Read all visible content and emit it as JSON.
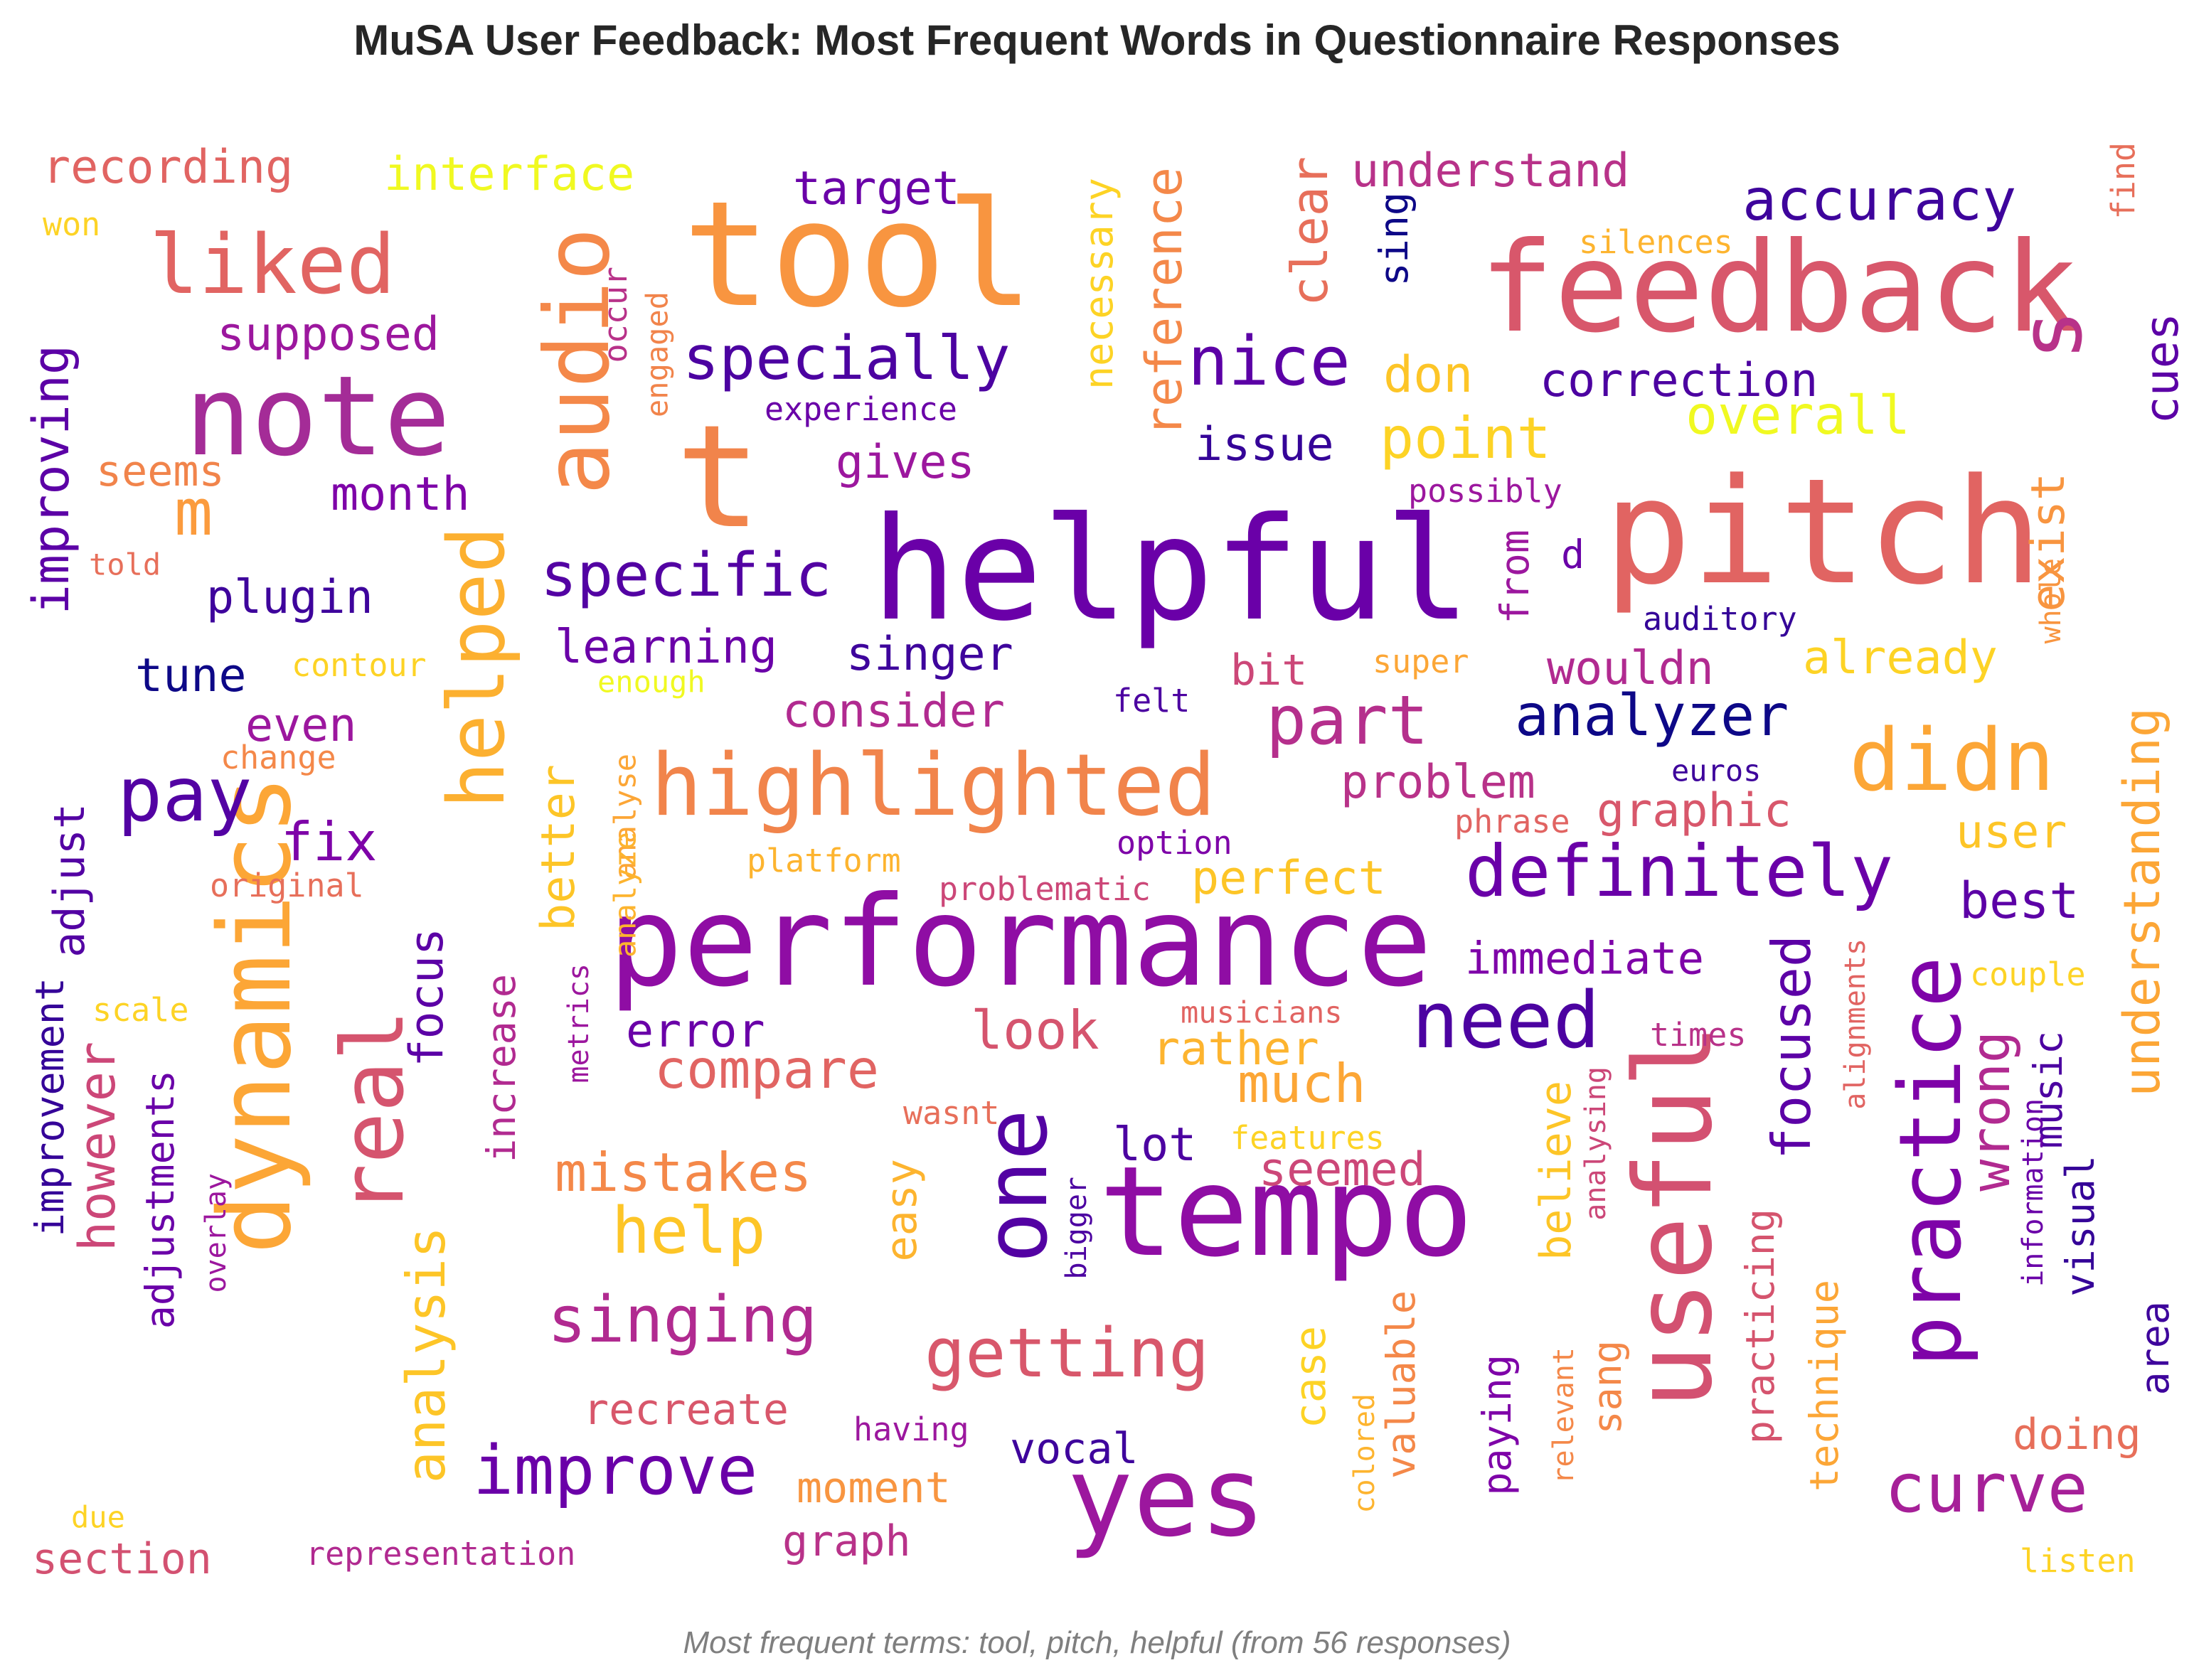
{
  "title": "MuSA User Feedback: Most Frequent Words in Questionnaire Responses",
  "caption": "Most frequent terms: tool, pitch, helpful (from 56 responses)",
  "colormap": "plasma",
  "words": [
    {
      "text": "tool",
      "c": "#f89540"
    },
    {
      "text": "pitch",
      "c": "#e16462"
    },
    {
      "text": "helpful",
      "c": "#6a00a8"
    },
    {
      "text": "feedback",
      "c": "#d8576b"
    },
    {
      "text": "performance",
      "c": "#8f0da4"
    },
    {
      "text": "tempo",
      "c": "#8f0da4"
    },
    {
      "text": "note",
      "c": "#a42c97"
    },
    {
      "text": "t",
      "c": "#f1844b"
    },
    {
      "text": "yes",
      "c": "#9c179e"
    },
    {
      "text": "useful",
      "c": "#d35171"
    },
    {
      "text": "dynamics",
      "c": "#fca636"
    },
    {
      "text": "audio",
      "c": "#f48849"
    },
    {
      "text": "highlighted",
      "c": "#f1844b"
    },
    {
      "text": "practice",
      "c": "#7e03a8"
    },
    {
      "text": "helped",
      "c": "#fcb030"
    },
    {
      "text": "one",
      "c": "#5302a3"
    },
    {
      "text": "real",
      "c": "#d5546e"
    },
    {
      "text": "didn",
      "c": "#fca636"
    },
    {
      "text": "definitely",
      "c": "#6a00a8"
    },
    {
      "text": "s",
      "c": "#b83289"
    },
    {
      "text": "need",
      "c": "#4c02a1"
    },
    {
      "text": "liked",
      "c": "#e16462"
    },
    {
      "text": "getting",
      "c": "#d8576b"
    },
    {
      "text": "singing",
      "c": "#b12a90"
    },
    {
      "text": "improve",
      "c": "#6a00a8"
    },
    {
      "text": "curve",
      "c": "#a62098"
    },
    {
      "text": "specially",
      "c": "#4c02a1"
    },
    {
      "text": "nice",
      "c": "#5c01a6"
    },
    {
      "text": "pay",
      "c": "#5302a3"
    },
    {
      "text": "accuracy",
      "c": "#3e049c"
    },
    {
      "text": "specific",
      "c": "#5302a3"
    },
    {
      "text": "part",
      "c": "#b52f8c"
    },
    {
      "text": "analyzer",
      "c": "#0d0887"
    },
    {
      "text": "compare",
      "c": "#e16462"
    },
    {
      "text": "mistakes",
      "c": "#f48849"
    },
    {
      "text": "help",
      "c": "#fdc527"
    },
    {
      "text": "improving",
      "c": "#5c01a6"
    },
    {
      "text": "analysis",
      "c": "#fdc527"
    },
    {
      "text": "wrong",
      "c": "#b12a90"
    },
    {
      "text": "understanding",
      "c": "#fca636"
    },
    {
      "text": "however",
      "c": "#cc4778"
    },
    {
      "text": "focused",
      "c": "#5c01a6"
    },
    {
      "text": "point",
      "c": "#fdd325"
    },
    {
      "text": "overall",
      "c": "#f0f921"
    },
    {
      "text": "reference",
      "c": "#f48849"
    },
    {
      "text": "clear",
      "c": "#e76f5a"
    },
    {
      "text": "m",
      "c": "#fb9b3d"
    },
    {
      "text": "look",
      "c": "#d5546e"
    },
    {
      "text": "much",
      "c": "#fca636"
    },
    {
      "text": "best",
      "c": "#5c01a6"
    },
    {
      "text": "recording",
      "c": "#e16462"
    },
    {
      "text": "interface",
      "c": "#f0f921"
    },
    {
      "text": "understand",
      "c": "#b83289"
    },
    {
      "text": "target",
      "c": "#6a00a8"
    },
    {
      "text": "correction",
      "c": "#4c02a1"
    },
    {
      "text": "supposed",
      "c": "#9c179e"
    },
    {
      "text": "gives",
      "c": "#9c179e"
    },
    {
      "text": "issue",
      "c": "#350498"
    },
    {
      "text": "don",
      "c": "#fdc527"
    },
    {
      "text": "month",
      "c": "#7e03a8"
    },
    {
      "text": "plugin",
      "c": "#3e049c"
    },
    {
      "text": "learning",
      "c": "#6a00a8"
    },
    {
      "text": "singer",
      "c": "#3e049c"
    },
    {
      "text": "consider",
      "c": "#b12a90"
    },
    {
      "text": "tune",
      "c": "#0d0887"
    },
    {
      "text": "already",
      "c": "#fdd325"
    },
    {
      "text": "wouldn",
      "c": "#b12a90"
    },
    {
      "text": "cues",
      "c": "#5c01a6"
    },
    {
      "text": "exist",
      "c": "#f89540"
    },
    {
      "text": "fix",
      "c": "#7e03a8"
    },
    {
      "text": "even",
      "c": "#9c179e"
    },
    {
      "text": "better",
      "c": "#fdc527"
    },
    {
      "text": "problem",
      "c": "#b83289"
    },
    {
      "text": "graphic",
      "c": "#d8576b"
    },
    {
      "text": "user",
      "c": "#fdc527"
    },
    {
      "text": "adjust",
      "c": "#5302a3"
    },
    {
      "text": "immediate",
      "c": "#7e03a8"
    },
    {
      "text": "perfect",
      "c": "#fdc527"
    },
    {
      "text": "focus",
      "c": "#5c01a6"
    },
    {
      "text": "error",
      "c": "#6a00a8"
    },
    {
      "text": "rather",
      "c": "#fdb42f"
    },
    {
      "text": "improvement",
      "c": "#350498"
    },
    {
      "text": "adjustments",
      "c": "#6a00a8"
    },
    {
      "text": "increase",
      "c": "#b12a90"
    },
    {
      "text": "lot",
      "c": "#4c02a1"
    },
    {
      "text": "seemed",
      "c": "#cc4778"
    },
    {
      "text": "easy",
      "c": "#fdb42f"
    },
    {
      "text": "believe",
      "c": "#fdc527"
    },
    {
      "text": "music",
      "c": "#4c02a1"
    },
    {
      "text": "visual",
      "c": "#350498"
    },
    {
      "text": "case",
      "c": "#fdd325"
    },
    {
      "text": "valuable",
      "c": "#f48849"
    },
    {
      "text": "paying",
      "c": "#7e03a8"
    },
    {
      "text": "sang",
      "c": "#f48849"
    },
    {
      "text": "practicing",
      "c": "#d5546e"
    },
    {
      "text": "technique",
      "c": "#fca636"
    },
    {
      "text": "area",
      "c": "#3e049c"
    },
    {
      "text": "doing",
      "c": "#e76f5a"
    },
    {
      "text": "recreate",
      "c": "#d8576b"
    },
    {
      "text": "vocal",
      "c": "#3e049c"
    },
    {
      "text": "moment",
      "c": "#f89540"
    },
    {
      "text": "graph",
      "c": "#b83289"
    },
    {
      "text": "section",
      "c": "#d35171"
    },
    {
      "text": "seems",
      "c": "#f1844b"
    },
    {
      "text": "sing",
      "c": "#0d0887"
    },
    {
      "text": "necessary",
      "c": "#fdd325"
    },
    {
      "text": "experience",
      "c": "#6a00a8"
    },
    {
      "text": "possibly",
      "c": "#9c179e"
    },
    {
      "text": "from",
      "c": "#9c179e"
    },
    {
      "text": "d",
      "c": "#6a00a8"
    },
    {
      "text": "bit",
      "c": "#cc4778"
    },
    {
      "text": "felt",
      "c": "#4c02a1"
    },
    {
      "text": "auditory",
      "c": "#350498"
    },
    {
      "text": "silences",
      "c": "#fdb42f"
    },
    {
      "text": "find",
      "c": "#e76f5a"
    },
    {
      "text": "whole",
      "c": "#f89540"
    },
    {
      "text": "occur",
      "c": "#b83289"
    },
    {
      "text": "engaged",
      "c": "#f1844b"
    },
    {
      "text": "won",
      "c": "#fdd325"
    },
    {
      "text": "told",
      "c": "#e76f5a"
    },
    {
      "text": "contour",
      "c": "#fdd325"
    },
    {
      "text": "enough",
      "c": "#f0f921"
    },
    {
      "text": "change",
      "c": "#f48849"
    },
    {
      "text": "super",
      "c": "#fca636"
    },
    {
      "text": "euros",
      "c": "#3e049c"
    },
    {
      "text": "phrase",
      "c": "#e16462"
    },
    {
      "text": "option",
      "c": "#7e03a8"
    },
    {
      "text": "platform",
      "c": "#fdb42f"
    },
    {
      "text": "problematic",
      "c": "#cc4778"
    },
    {
      "text": "original",
      "c": "#e76f5a"
    },
    {
      "text": "analyse",
      "c": "#fca636"
    },
    {
      "text": "analyze",
      "c": "#fdb42f"
    },
    {
      "text": "scale",
      "c": "#fdd325"
    },
    {
      "text": "metrics",
      "c": "#9c179e"
    },
    {
      "text": "musicians",
      "c": "#e16462"
    },
    {
      "text": "couple",
      "c": "#fdd325"
    },
    {
      "text": "times",
      "c": "#b83289"
    },
    {
      "text": "alignments",
      "c": "#e16462"
    },
    {
      "text": "wasnt",
      "c": "#e76f5a"
    },
    {
      "text": "features",
      "c": "#fdd325"
    },
    {
      "text": "bigger",
      "c": "#4c02a1"
    },
    {
      "text": "analysing",
      "c": "#cc4778"
    },
    {
      "text": "information",
      "c": "#6a00a8"
    },
    {
      "text": "overlay",
      "c": "#9c179e"
    },
    {
      "text": "colored",
      "c": "#fdb42f"
    },
    {
      "text": "relevant",
      "c": "#f48849"
    },
    {
      "text": "having",
      "c": "#9c179e"
    },
    {
      "text": "due",
      "c": "#fdd325"
    },
    {
      "text": "representation",
      "c": "#b12a90"
    },
    {
      "text": "listen",
      "c": "#fdd325"
    }
  ]
}
